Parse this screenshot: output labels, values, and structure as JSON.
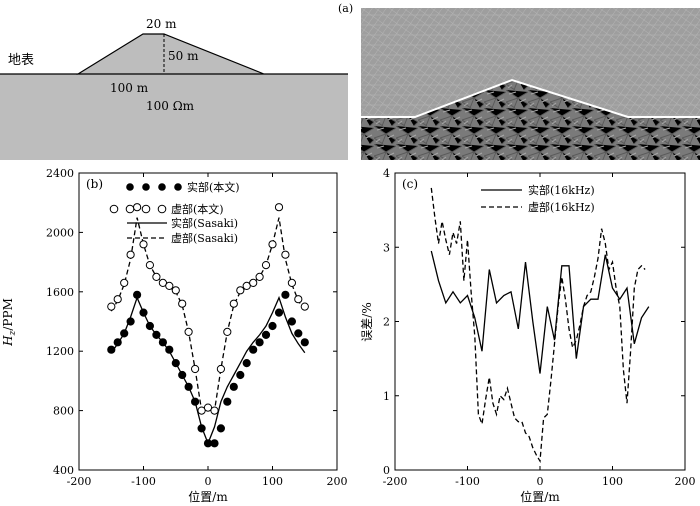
{
  "model": {
    "top_label": "20 m",
    "height_label": "50 m",
    "base_label": "100 m",
    "surface_label": "地表",
    "resistivity_label": "100 Ωm",
    "colors": {
      "ground": "#bdbdbd",
      "line": "#000000"
    }
  },
  "mesh": {
    "panel_label": "(a)"
  },
  "chart_data": [
    {
      "type": "scatter",
      "panel_label": "(b)",
      "title": "",
      "xlabel": "位置/m",
      "ylabel_main": "H",
      "ylabel_sub": "z",
      "ylabel_unit": "/PPM",
      "xlim": [
        -200,
        200
      ],
      "ylim": [
        400,
        2400
      ],
      "xticks": [
        "-200",
        "-100",
        "0",
        "100",
        "200"
      ],
      "yticks": [
        "400",
        "800",
        "1200",
        "1600",
        "2000",
        "2400"
      ],
      "xtick_values": [
        -200,
        -100,
        0,
        100,
        200
      ],
      "ytick_values": [
        400,
        800,
        1200,
        1600,
        2000,
        2400
      ],
      "grid": false,
      "legend_position": "top-center",
      "series": [
        {
          "name": "实部(本文)",
          "style": "filled-circle",
          "x": [
            -150,
            -140,
            -130,
            -120,
            -110,
            -100,
            -90,
            -80,
            -70,
            -60,
            -50,
            -40,
            -30,
            -20,
            -10,
            0,
            10,
            20,
            30,
            40,
            50,
            60,
            70,
            80,
            90,
            100,
            110,
            120,
            130,
            140,
            150
          ],
          "y": [
            1210,
            1260,
            1320,
            1400,
            1580,
            1460,
            1370,
            1310,
            1260,
            1210,
            1120,
            1040,
            960,
            860,
            680,
            580,
            580,
            680,
            860,
            960,
            1040,
            1120,
            1210,
            1260,
            1310,
            1370,
            1460,
            1580,
            1400,
            1320,
            1260
          ]
        },
        {
          "name": "虚部(本文)",
          "style": "open-circle",
          "x": [
            -150,
            -140,
            -130,
            -120,
            -110,
            -100,
            -90,
            -80,
            -70,
            -60,
            -50,
            -40,
            -30,
            -20,
            -10,
            0,
            10,
            20,
            30,
            40,
            50,
            60,
            70,
            80,
            90,
            100,
            110,
            120,
            130,
            140,
            150
          ],
          "y": [
            1500,
            1550,
            1660,
            1850,
            2170,
            1920,
            1780,
            1700,
            1660,
            1640,
            1610,
            1520,
            1330,
            1080,
            800,
            820,
            800,
            1080,
            1330,
            1520,
            1610,
            1640,
            1660,
            1700,
            1780,
            1920,
            2170,
            1850,
            1660,
            1550,
            1500
          ]
        },
        {
          "name": "实部(Sasaki)",
          "style": "solid-line",
          "x": [
            -150,
            -140,
            -130,
            -120,
            -110,
            -100,
            -90,
            -80,
            -70,
            -60,
            -50,
            -40,
            -30,
            -20,
            -10,
            0,
            10,
            20,
            30,
            40,
            50,
            60,
            70,
            80,
            90,
            100,
            110,
            120,
            130,
            140,
            150
          ],
          "y": [
            1190,
            1250,
            1320,
            1430,
            1560,
            1460,
            1370,
            1310,
            1260,
            1200,
            1120,
            1040,
            960,
            860,
            690,
            580,
            690,
            860,
            960,
            1040,
            1120,
            1200,
            1260,
            1310,
            1370,
            1460,
            1560,
            1430,
            1320,
            1250,
            1190
          ]
        },
        {
          "name": "虚部(Sasaki)",
          "style": "dashed-line",
          "x": [
            -150,
            -140,
            -130,
            -120,
            -110,
            -100,
            -90,
            -80,
            -70,
            -60,
            -50,
            -40,
            -30,
            -20,
            -10,
            0,
            10,
            20,
            30,
            40,
            50,
            60,
            70,
            80,
            90,
            100,
            110,
            120,
            130,
            140,
            150
          ],
          "y": [
            1470,
            1540,
            1650,
            1820,
            2100,
            1920,
            1780,
            1700,
            1660,
            1630,
            1600,
            1510,
            1330,
            1080,
            800,
            830,
            800,
            1080,
            1330,
            1510,
            1600,
            1630,
            1660,
            1700,
            1780,
            1920,
            2100,
            1820,
            1650,
            1540,
            1470
          ]
        }
      ]
    },
    {
      "type": "line",
      "panel_label": "(c)",
      "title": "",
      "xlabel": "位置/m",
      "ylabel": "误差/%",
      "xlim": [
        -200,
        200
      ],
      "ylim": [
        0,
        4
      ],
      "xticks": [
        "-200",
        "-100",
        "0",
        "100",
        "200"
      ],
      "yticks": [
        "0",
        "1",
        "2",
        "3",
        "4"
      ],
      "xtick_values": [
        -200,
        -100,
        0,
        100,
        200
      ],
      "ytick_values": [
        0,
        1,
        2,
        3,
        4
      ],
      "grid": false,
      "legend_position": "top-center",
      "series": [
        {
          "name": "实部(16kHz)",
          "style": "solid-line",
          "x": [
            -150,
            -140,
            -130,
            -120,
            -110,
            -100,
            -90,
            -80,
            -70,
            -60,
            -50,
            -40,
            -30,
            -20,
            -10,
            0,
            10,
            20,
            30,
            40,
            50,
            60,
            70,
            80,
            90,
            100,
            110,
            120,
            130,
            140,
            150
          ],
          "y": [
            2.95,
            2.55,
            2.25,
            2.4,
            2.25,
            2.35,
            2.05,
            1.6,
            2.7,
            2.25,
            2.35,
            2.4,
            1.9,
            2.8,
            2.0,
            1.3,
            2.2,
            1.75,
            2.75,
            2.75,
            1.5,
            2.2,
            2.3,
            2.3,
            2.9,
            2.45,
            2.3,
            2.45,
            1.7,
            2.05,
            2.2
          ]
        },
        {
          "name": "虚部(16kHz)",
          "style": "dashed-line",
          "x": [
            -150,
            -145,
            -140,
            -135,
            -130,
            -125,
            -120,
            -115,
            -110,
            -105,
            -100,
            -95,
            -90,
            -85,
            -80,
            -75,
            -70,
            -65,
            -60,
            -55,
            -50,
            -45,
            -40,
            -35,
            -30,
            -25,
            -20,
            -15,
            -10,
            -5,
            0,
            5,
            10,
            15,
            20,
            25,
            30,
            35,
            40,
            45,
            50,
            55,
            60,
            65,
            70,
            75,
            80,
            85,
            90,
            95,
            100,
            105,
            110,
            115,
            120,
            125,
            130,
            135,
            140,
            145
          ],
          "y": [
            3.8,
            3.4,
            3.05,
            3.35,
            3.1,
            2.9,
            3.2,
            3.05,
            3.35,
            2.55,
            3.1,
            2.4,
            1.8,
            0.75,
            0.62,
            0.95,
            1.25,
            0.9,
            0.75,
            1.0,
            0.95,
            1.1,
            0.9,
            0.7,
            0.65,
            0.65,
            0.5,
            0.45,
            0.3,
            0.2,
            0.12,
            0.7,
            0.75,
            1.2,
            1.7,
            2.2,
            2.6,
            2.3,
            1.9,
            1.65,
            1.75,
            1.95,
            2.2,
            2.35,
            2.4,
            2.6,
            2.85,
            3.25,
            3.05,
            2.7,
            2.8,
            2.45,
            2.2,
            1.35,
            0.9,
            1.6,
            2.45,
            2.7,
            2.75,
            2.7
          ]
        }
      ]
    }
  ]
}
